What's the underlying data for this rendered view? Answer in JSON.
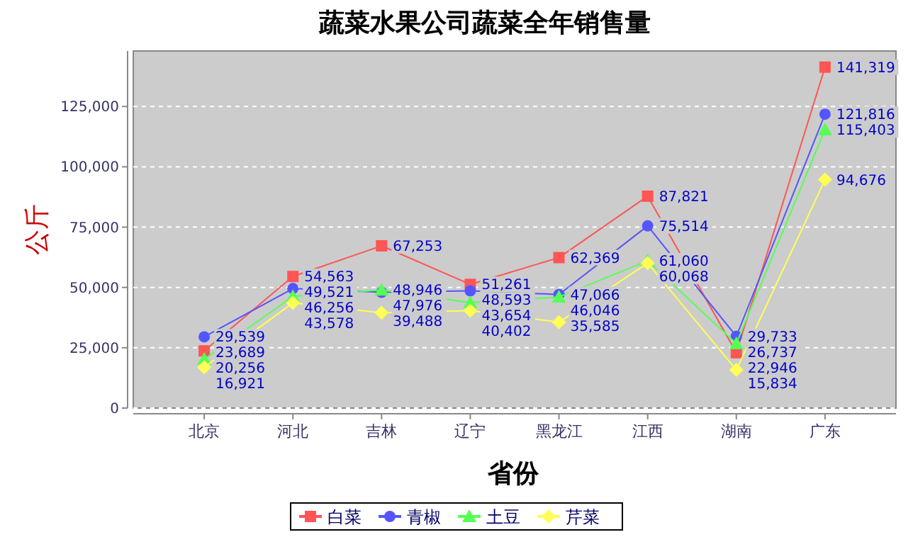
{
  "chart_data": {
    "type": "line",
    "title": "蔬菜水果公司蔬菜全年销售量",
    "xlabel": "省份",
    "ylabel": "公斤",
    "categories": [
      "北京",
      "河北",
      "吉林",
      "辽宁",
      "黑龙江",
      "江西",
      "湖南",
      "广东"
    ],
    "series": [
      {
        "name": "白菜",
        "color": "#ff5555",
        "marker": "square",
        "values": [
          23689,
          54563,
          67253,
          51261,
          62369,
          87821,
          22946,
          141319
        ],
        "value_labels": [
          "23,689",
          "54,563",
          "67,253",
          "51,261",
          "62,369",
          "87,821",
          "22,946",
          "141,319"
        ]
      },
      {
        "name": "青椒",
        "color": "#5555ff",
        "marker": "circle",
        "values": [
          29539,
          49521,
          47976,
          48593,
          47066,
          75514,
          29733,
          121816
        ],
        "value_labels": [
          "29,539",
          "49,521",
          "47,976",
          "48,593",
          "47,066",
          "75,514",
          "29,733",
          "121,816"
        ]
      },
      {
        "name": "土豆",
        "color": "#55ff55",
        "marker": "triangle",
        "values": [
          20256,
          46256,
          48946,
          43654,
          46046,
          61060,
          26737,
          115403
        ],
        "value_labels": [
          "20,256",
          "46,256",
          "48,946",
          "43,654",
          "46,046",
          "61,060",
          "26,737",
          "115,403"
        ]
      },
      {
        "name": "芹菜",
        "color": "#ffff55",
        "marker": "diamond",
        "values": [
          16921,
          43578,
          39488,
          40402,
          35585,
          60068,
          15834,
          94676
        ],
        "value_labels": [
          "16,921",
          "43,578",
          "39,488",
          "40,402",
          "35,585",
          "60,068",
          "15,834",
          "94,676"
        ]
      }
    ],
    "ylim": [
      0,
      148000
    ],
    "yticks": [
      0,
      {
        "value": 25000,
        "label": "25,000"
      },
      {
        "value": 50000,
        "label": "50,000"
      },
      {
        "value": 75000,
        "label": "75,000"
      },
      {
        "value": 100000,
        "label": "100,000"
      },
      {
        "value": 125000,
        "label": "125,000"
      }
    ],
    "grid": "y",
    "legend": "bottom"
  }
}
